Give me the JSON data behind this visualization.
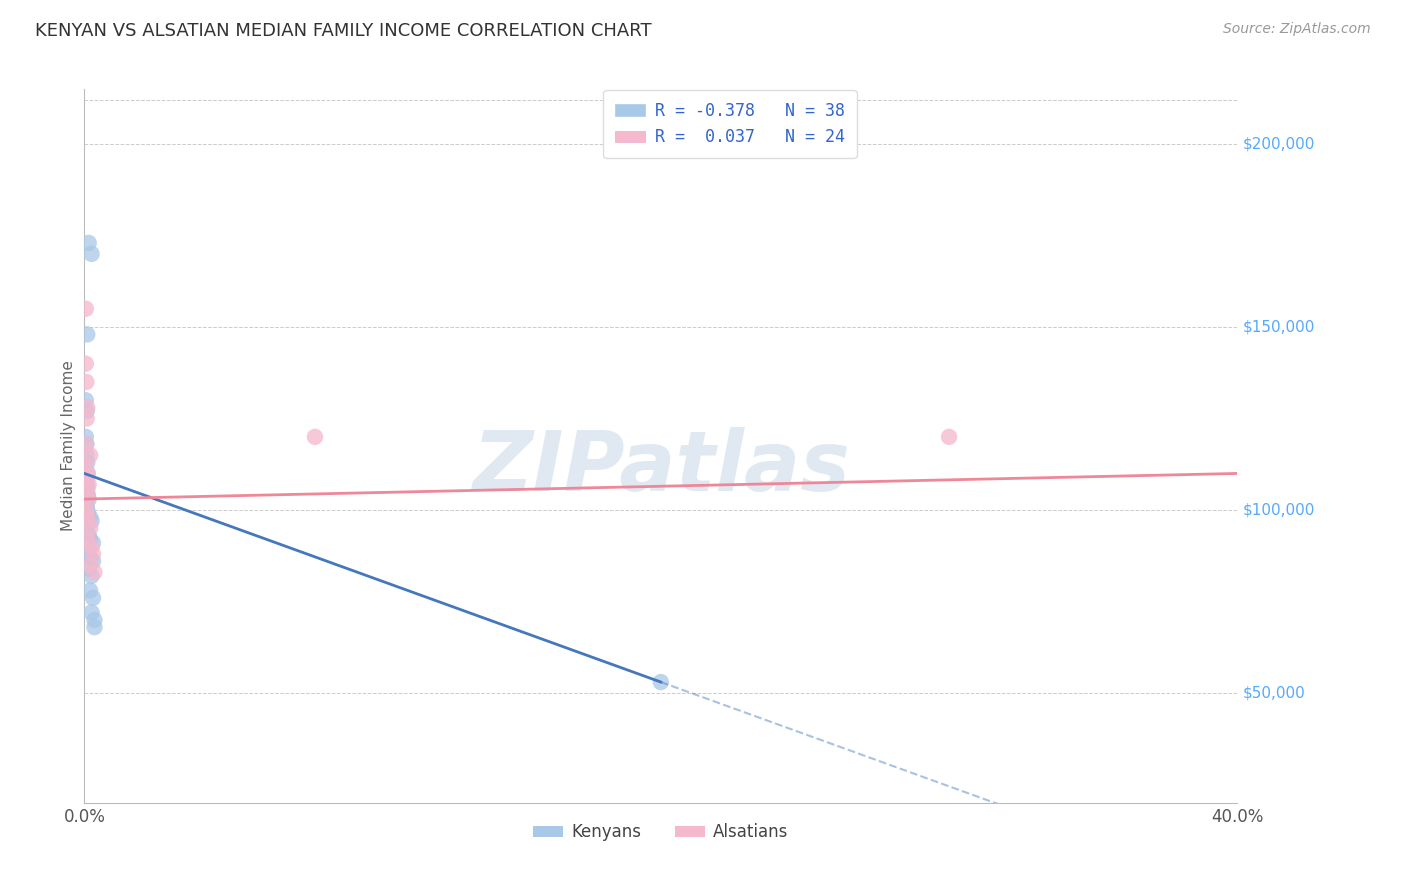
{
  "title": "KENYAN VS ALSATIAN MEDIAN FAMILY INCOME CORRELATION CHART",
  "source": "Source: ZipAtlas.com",
  "ylabel": "Median Family Income",
  "right_yticks": [
    50000,
    100000,
    150000,
    200000
  ],
  "right_ytick_labels": [
    "$50,000",
    "$100,000",
    "$150,000",
    "$200,000"
  ],
  "xlim": [
    0.0,
    40.0
  ],
  "ylim": [
    20000,
    215000
  ],
  "watermark_text": "ZIPatlas",
  "legend_label_1": "R = -0.378   N = 38",
  "legend_label_2": "R =  0.037   N = 24",
  "kenyan_color": "#a8c8e8",
  "alsatian_color": "#f5b8cc",
  "kenyan_line_color": "#4477bb",
  "alsatian_line_color": "#ee8899",
  "bg_color": "#ffffff",
  "grid_color": "#cccccc",
  "title_color": "#333333",
  "right_label_color": "#55aaff",
  "legend_patch_kenyan": "#a8c8e8",
  "legend_patch_alsatian": "#f5b8cc",
  "kenyan_points": [
    [
      0.15,
      173000
    ],
    [
      0.25,
      170000
    ],
    [
      0.1,
      148000
    ],
    [
      0.05,
      130000
    ],
    [
      0.08,
      127000
    ],
    [
      0.05,
      120000
    ],
    [
      0.07,
      118000
    ],
    [
      0.08,
      115000
    ],
    [
      0.1,
      113000
    ],
    [
      0.12,
      110000
    ],
    [
      0.05,
      108000
    ],
    [
      0.06,
      107000
    ],
    [
      0.1,
      106000
    ],
    [
      0.08,
      105000
    ],
    [
      0.12,
      104000
    ],
    [
      0.15,
      103000
    ],
    [
      0.05,
      102000
    ],
    [
      0.08,
      101000
    ],
    [
      0.1,
      100000
    ],
    [
      0.12,
      99000
    ],
    [
      0.2,
      98000
    ],
    [
      0.25,
      97000
    ],
    [
      0.05,
      95000
    ],
    [
      0.1,
      94000
    ],
    [
      0.15,
      93000
    ],
    [
      0.2,
      92000
    ],
    [
      0.3,
      91000
    ],
    [
      0.1,
      88000
    ],
    [
      0.2,
      87000
    ],
    [
      0.3,
      86000
    ],
    [
      0.15,
      84000
    ],
    [
      0.25,
      82000
    ],
    [
      0.2,
      78000
    ],
    [
      0.3,
      76000
    ],
    [
      0.25,
      72000
    ],
    [
      0.35,
      70000
    ],
    [
      20.0,
      53000
    ],
    [
      0.35,
      68000
    ]
  ],
  "alsatian_points": [
    [
      0.05,
      155000
    ],
    [
      0.05,
      140000
    ],
    [
      0.07,
      135000
    ],
    [
      0.1,
      128000
    ],
    [
      0.08,
      125000
    ],
    [
      0.06,
      118000
    ],
    [
      0.2,
      115000
    ],
    [
      0.05,
      112000
    ],
    [
      0.1,
      110000
    ],
    [
      0.08,
      108000
    ],
    [
      0.15,
      107000
    ],
    [
      0.1,
      105000
    ],
    [
      0.12,
      103000
    ],
    [
      0.05,
      100000
    ],
    [
      0.08,
      99000
    ],
    [
      0.15,
      97000
    ],
    [
      0.2,
      95000
    ],
    [
      0.1,
      92000
    ],
    [
      0.25,
      90000
    ],
    [
      0.3,
      88000
    ],
    [
      0.2,
      85000
    ],
    [
      0.35,
      83000
    ],
    [
      30.0,
      120000
    ],
    [
      8.0,
      120000
    ]
  ],
  "kenyan_line_x0": 0.0,
  "kenyan_line_y0": 110000,
  "kenyan_line_x1": 20.0,
  "kenyan_line_y1": 53000,
  "kenyan_dash_x0": 20.0,
  "kenyan_dash_x1": 40.0,
  "alsatian_line_x0": 0.0,
  "alsatian_line_y0": 103000,
  "alsatian_line_x1": 40.0,
  "alsatian_line_y1": 110000
}
